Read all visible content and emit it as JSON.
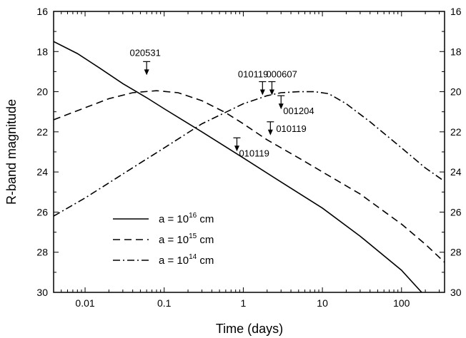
{
  "chart_data": {
    "type": "line",
    "xlabel": "Time (days)",
    "ylabel": "R-band magnitude",
    "xscale": "log",
    "xlim": [
      0.004,
      350
    ],
    "ylim": [
      30,
      16
    ],
    "y_inverted": true,
    "x_ticks": [
      0.01,
      0.1,
      1,
      10,
      100
    ],
    "x_tick_labels": [
      "0.01",
      "0.1",
      "1",
      "10",
      "100"
    ],
    "y_ticks": [
      16,
      18,
      20,
      22,
      24,
      26,
      28,
      30
    ],
    "y_tick_labels": [
      "16",
      "18",
      "20",
      "22",
      "24",
      "26",
      "28",
      "30"
    ],
    "grid": false,
    "mirror_right_axis": true,
    "legend": {
      "placement": "bottom-left",
      "entries": [
        {
          "prefix": "a = 10",
          "exp": "16",
          "suffix": " cm",
          "dash": "solid"
        },
        {
          "prefix": "a = 10",
          "exp": "15",
          "suffix": " cm",
          "dash": "dashed"
        },
        {
          "prefix": "a = 10",
          "exp": "14",
          "suffix": " cm",
          "dash": "dashdot"
        }
      ]
    },
    "series": [
      {
        "dash": "solid",
        "x": [
          0.004,
          0.008,
          0.015,
          0.03,
          0.06,
          0.1,
          0.3,
          1,
          3,
          10,
          30,
          100,
          180
        ],
        "y": [
          17.5,
          18.1,
          18.8,
          19.6,
          20.3,
          20.85,
          22.0,
          23.3,
          24.5,
          25.8,
          27.2,
          28.9,
          30.0
        ]
      },
      {
        "dash": "dashed",
        "x": [
          0.004,
          0.01,
          0.02,
          0.04,
          0.08,
          0.15,
          0.3,
          0.6,
          1,
          2,
          5,
          10,
          30,
          100,
          200,
          350
        ],
        "y": [
          21.4,
          20.8,
          20.35,
          20.05,
          19.95,
          20.05,
          20.45,
          21.05,
          21.6,
          22.4,
          23.3,
          24.0,
          25.1,
          26.6,
          27.6,
          28.5
        ]
      },
      {
        "dash": "dashdot",
        "x": [
          0.004,
          0.01,
          0.03,
          0.1,
          0.3,
          1,
          2,
          3,
          5,
          8,
          12,
          20,
          40,
          100,
          200,
          330
        ],
        "y": [
          26.2,
          25.3,
          24.1,
          22.8,
          21.6,
          20.6,
          20.2,
          20.05,
          20.0,
          20.0,
          20.1,
          20.6,
          21.5,
          22.8,
          23.8,
          24.4
        ]
      }
    ],
    "upper_limits": [
      {
        "label": "020531",
        "x": 0.06,
        "y": 18.5,
        "label_side": "above"
      },
      {
        "label": "010119",
        "x": 1.75,
        "y": 19.5,
        "label_side": "above-left"
      },
      {
        "label": "000607",
        "x": 2.3,
        "y": 19.5,
        "label_side": "above-right"
      },
      {
        "label": "001204",
        "x": 3.0,
        "y": 20.2,
        "label_side": "below-right"
      },
      {
        "label": "010119",
        "x": 2.2,
        "y": 21.5,
        "label_side": "right"
      },
      {
        "label": "010119",
        "x": 0.83,
        "y": 22.3,
        "label_side": "below-right"
      }
    ]
  }
}
